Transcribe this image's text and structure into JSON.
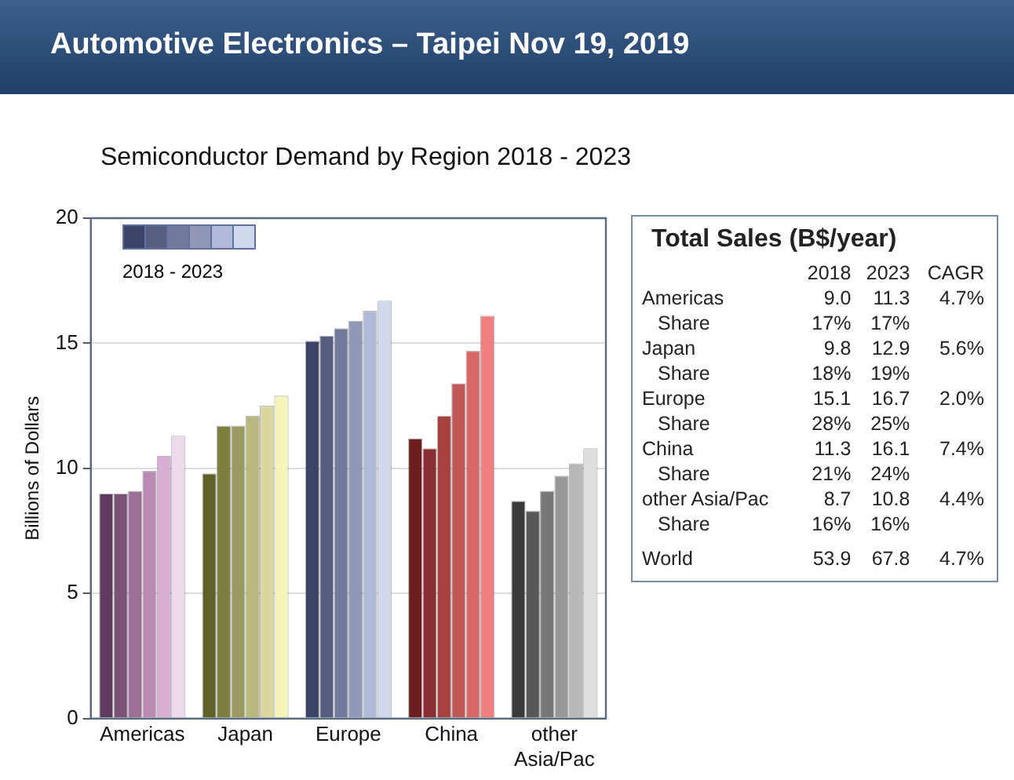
{
  "chart_data": {
    "type": "bar",
    "title": "Automotive Electronics – Taipei Nov 19, 2019",
    "subtitle": "Semiconductor Demand by Region 2018 - 2023",
    "ylabel": "Billions of Dollars",
    "legend_title": "2018 - 2023",
    "grid": "y",
    "ylim": [
      0,
      20
    ],
    "yticks": [
      0,
      5,
      10,
      15,
      20
    ],
    "categories": [
      "Americas",
      "Japan",
      "Europe",
      "China",
      "other Asia/Pac"
    ],
    "series": [
      {
        "colors": [
          "#5e3a60",
          "#5e6028",
          "#3a4466",
          "#6a1e1e",
          "#3a3a3a"
        ],
        "values": [
          9.0,
          9.8,
          15.1,
          11.2,
          8.7
        ]
      },
      {
        "colors": [
          "#7a5278",
          "#7e8040",
          "#565e80",
          "#8a2e32",
          "#585858"
        ],
        "values": [
          9.0,
          11.7,
          15.3,
          10.8,
          8.3
        ]
      },
      {
        "colors": [
          "#9a7098",
          "#9a9a60",
          "#727a9c",
          "#a84040",
          "#787878"
        ],
        "values": [
          9.1,
          11.7,
          15.6,
          12.1,
          9.1
        ]
      },
      {
        "colors": [
          "#b88ab4",
          "#b8b880",
          "#9098b8",
          "#c05858",
          "#989898"
        ],
        "values": [
          9.9,
          12.1,
          15.9,
          13.4,
          9.7
        ]
      },
      {
        "colors": [
          "#d8aed4",
          "#d8d8a0",
          "#b0b8d8",
          "#d86868",
          "#b8b8b8"
        ],
        "values": [
          10.5,
          12.5,
          16.3,
          14.7,
          10.2
        ]
      },
      {
        "colors": [
          "#f0d8ec",
          "#f4f4b8",
          "#d0d8ee",
          "#f08080",
          "#dedede"
        ],
        "values": [
          11.3,
          12.9,
          16.7,
          16.1,
          10.8
        ]
      }
    ],
    "annotations": [
      "Total Sales (B$/year)",
      "2018",
      "2023",
      "CAGR",
      "Americas",
      "9.0",
      "11.3",
      "4.7%",
      "Share",
      "17%",
      "17%",
      "Japan",
      "9.8",
      "12.9",
      "5.6%",
      "Share",
      "18%",
      "19%",
      "Europe",
      "15.1",
      "16.7",
      "2.0%",
      "Share",
      "28%",
      "25%",
      "China",
      "11.3",
      "16.1",
      "7.4%",
      "Share",
      "21%",
      "24%",
      "other Asia/Pac",
      "8.7",
      "10.8",
      "4.4%",
      "Share",
      "16%",
      "16%",
      "World",
      "53.9",
      "67.8",
      "4.7%"
    ]
  }
}
